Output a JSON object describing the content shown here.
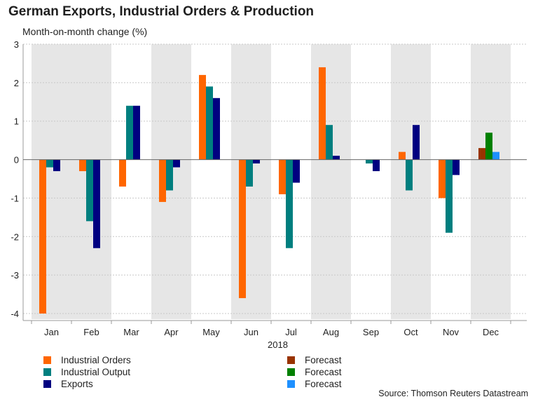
{
  "header": {
    "title": "German Exports, Industrial Orders & Production",
    "subtitle": "Month-on-month change (%)"
  },
  "source": "Source: Thomson Reuters Datastream",
  "chart_data": {
    "type": "bar",
    "title": "German Exports, Industrial Orders & Production",
    "subtitle": "Month-on-month change (%)",
    "xlabel": "2018",
    "ylabel": "",
    "ylim": [
      -4,
      3
    ],
    "yticks": [
      3,
      2,
      1,
      0,
      -1,
      -2,
      -3,
      -4
    ],
    "grid": true,
    "categories": [
      "Jan",
      "Feb",
      "Mar",
      "Apr",
      "May",
      "Jun",
      "Jul",
      "Aug",
      "Sep",
      "Oct",
      "Nov",
      "Dec"
    ],
    "shaded_categories": [
      "Jan",
      "Feb",
      "Apr",
      "Jun",
      "Aug",
      "Oct",
      "Dec"
    ],
    "series": [
      {
        "name": "Industrial Orders",
        "color": "#ff6600",
        "slot": 0,
        "values": [
          -4.0,
          -0.3,
          -0.7,
          -1.1,
          2.2,
          -3.6,
          -0.9,
          2.4,
          null,
          0.2,
          -1.0,
          null
        ]
      },
      {
        "name": "Industrial Output",
        "color": "#007f7f",
        "slot": 1,
        "values": [
          -0.2,
          -1.6,
          1.4,
          -0.8,
          1.9,
          -0.7,
          -2.3,
          0.9,
          -0.1,
          -0.8,
          -1.9,
          null
        ]
      },
      {
        "name": "Exports",
        "color": "#000080",
        "slot": 2,
        "values": [
          -0.3,
          -2.3,
          1.4,
          -0.2,
          1.6,
          -0.1,
          -0.6,
          0.1,
          -0.3,
          0.9,
          -0.4,
          null
        ]
      },
      {
        "name": "Forecast",
        "color": "#993300",
        "slot": 0,
        "values": [
          null,
          null,
          null,
          null,
          null,
          null,
          null,
          null,
          null,
          null,
          null,
          0.3
        ]
      },
      {
        "name": "Forecast",
        "color": "#008000",
        "slot": 1,
        "values": [
          null,
          null,
          null,
          null,
          null,
          null,
          null,
          null,
          null,
          null,
          null,
          0.7
        ]
      },
      {
        "name": "Forecast",
        "color": "#1e90ff",
        "slot": 2,
        "values": [
          null,
          null,
          null,
          null,
          null,
          null,
          null,
          null,
          null,
          null,
          null,
          0.2
        ]
      }
    ],
    "legend_left": [
      {
        "label": "Industrial Orders",
        "color": "#ff6600"
      },
      {
        "label": "Industrial Output",
        "color": "#007f7f"
      },
      {
        "label": "Exports",
        "color": "#000080"
      }
    ],
    "legend_right": [
      {
        "label": "Forecast",
        "color": "#993300"
      },
      {
        "label": "Forecast",
        "color": "#008000"
      },
      {
        "label": "Forecast",
        "color": "#1e90ff"
      }
    ]
  }
}
